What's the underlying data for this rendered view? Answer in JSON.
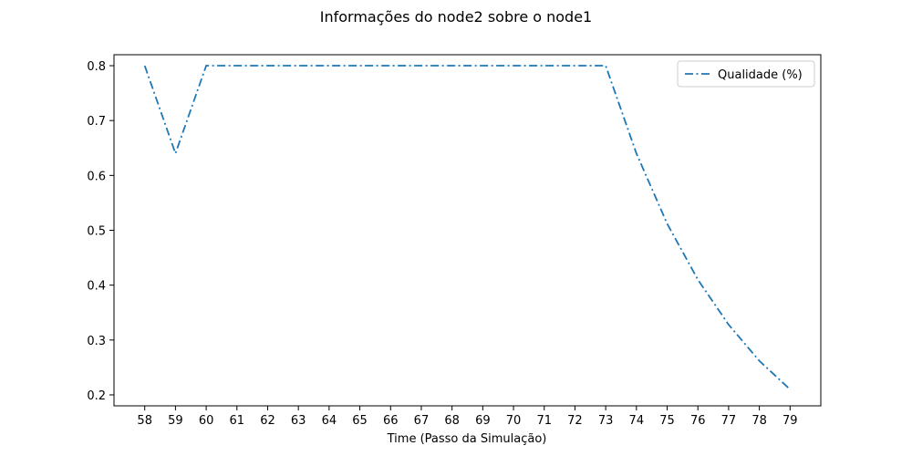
{
  "chart_data": {
    "type": "line",
    "title": "Informações do node2 sobre o node1",
    "xlabel": "Time (Passo da Simulação)",
    "ylabel": "",
    "x": [
      58,
      59,
      60,
      61,
      62,
      63,
      64,
      65,
      66,
      67,
      68,
      69,
      70,
      71,
      72,
      73,
      74,
      75,
      76,
      77,
      78,
      79
    ],
    "x_tick_labels": [
      "58",
      "59",
      "60",
      "61",
      "62",
      "63",
      "64",
      "65",
      "66",
      "67",
      "68",
      "69",
      "70",
      "71",
      "72",
      "73",
      "74",
      "75",
      "76",
      "77",
      "78",
      "79"
    ],
    "y_ticks": [
      0.2,
      0.3,
      0.4,
      0.5,
      0.6,
      0.7,
      0.8
    ],
    "y_tick_labels": [
      "0.2",
      "0.3",
      "0.4",
      "0.5",
      "0.6",
      "0.7",
      "0.8"
    ],
    "xlim": [
      57.0,
      80.0
    ],
    "ylim": [
      0.18,
      0.82
    ],
    "grid": false,
    "legend_position": "top-right",
    "series": [
      {
        "name": "Qualidade (%)",
        "color": "#1f77b4",
        "line_style": "dash-dot",
        "values": [
          0.8,
          0.64,
          0.8,
          0.8,
          0.8,
          0.8,
          0.8,
          0.8,
          0.8,
          0.8,
          0.8,
          0.8,
          0.8,
          0.8,
          0.8,
          0.8,
          0.64,
          0.512,
          0.41,
          0.328,
          0.262,
          0.21
        ]
      }
    ]
  }
}
